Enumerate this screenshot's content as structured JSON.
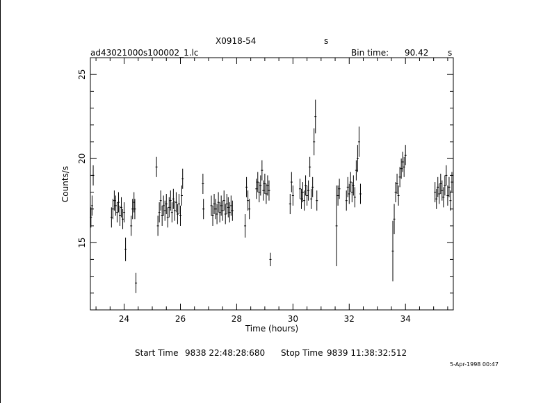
{
  "header": {
    "source": "X0918-54",
    "source_units": "s",
    "filename": "ad43021000s100002_1.lc",
    "bin_time_label": "Bin time:",
    "bin_time_value": "90.42",
    "bin_time_units": "s"
  },
  "footer": {
    "start_label": "Start Time",
    "start_value": "9838 22:48:28:680",
    "stop_label": "Stop Time",
    "stop_value": "9839 11:38:32:512",
    "date_stamp": "5-Apr-1998 00:47"
  },
  "chart_data": {
    "type": "scatter",
    "title": "X0918-54",
    "xlabel": "Time (hours)",
    "ylabel": "Counts/s",
    "xlim": [
      22.8,
      35.7
    ],
    "ylim": [
      11.0,
      26.0
    ],
    "x_ticks": [
      24,
      26,
      28,
      30,
      32,
      34
    ],
    "y_ticks": [
      15,
      20,
      25
    ],
    "error_bars": true,
    "series": [
      {
        "points": [
          [
            22.82,
            16.5,
            0.6
          ],
          [
            22.86,
            17.2,
            0.6
          ],
          [
            22.9,
            19.0,
            0.6
          ],
          [
            23.55,
            16.5,
            0.6
          ],
          [
            23.6,
            17.0,
            0.6
          ],
          [
            23.65,
            17.5,
            0.6
          ],
          [
            23.7,
            17.2,
            0.6
          ],
          [
            23.75,
            16.8,
            0.6
          ],
          [
            23.8,
            17.4,
            0.6
          ],
          [
            23.85,
            16.6,
            0.6
          ],
          [
            23.9,
            17.1,
            0.6
          ],
          [
            23.95,
            16.4,
            0.6
          ],
          [
            24.0,
            16.8,
            0.6
          ],
          [
            24.05,
            14.6,
            0.7
          ],
          [
            24.25,
            16.0,
            0.6
          ],
          [
            24.3,
            17.0,
            0.6
          ],
          [
            24.35,
            17.4,
            0.6
          ],
          [
            24.38,
            17.0,
            0.6
          ],
          [
            24.42,
            12.6,
            0.6
          ],
          [
            25.15,
            19.5,
            0.6
          ],
          [
            25.2,
            16.0,
            0.6
          ],
          [
            25.25,
            16.8,
            0.6
          ],
          [
            25.3,
            17.5,
            0.6
          ],
          [
            25.35,
            16.6,
            0.6
          ],
          [
            25.4,
            17.2,
            0.6
          ],
          [
            25.45,
            16.9,
            0.6
          ],
          [
            25.5,
            17.3,
            0.6
          ],
          [
            25.55,
            16.5,
            0.6
          ],
          [
            25.6,
            17.1,
            0.6
          ],
          [
            25.65,
            17.5,
            0.6
          ],
          [
            25.7,
            16.8,
            0.6
          ],
          [
            25.75,
            17.6,
            0.6
          ],
          [
            25.8,
            16.9,
            0.6
          ],
          [
            25.85,
            17.4,
            0.6
          ],
          [
            25.9,
            16.7,
            0.6
          ],
          [
            25.95,
            17.3,
            0.6
          ],
          [
            26.0,
            16.6,
            0.6
          ],
          [
            26.05,
            17.8,
            0.6
          ],
          [
            26.08,
            18.8,
            0.6
          ],
          [
            26.8,
            18.5,
            0.6
          ],
          [
            26.82,
            17.0,
            0.6
          ],
          [
            27.1,
            17.2,
            0.6
          ],
          [
            27.15,
            16.6,
            0.6
          ],
          [
            27.2,
            17.3,
            0.6
          ],
          [
            27.25,
            17.0,
            0.6
          ],
          [
            27.3,
            16.7,
            0.6
          ],
          [
            27.35,
            17.4,
            0.6
          ],
          [
            27.4,
            16.8,
            0.6
          ],
          [
            27.45,
            17.2,
            0.6
          ],
          [
            27.5,
            16.9,
            0.6
          ],
          [
            27.55,
            17.5,
            0.6
          ],
          [
            27.6,
            16.7,
            0.6
          ],
          [
            27.65,
            17.3,
            0.6
          ],
          [
            27.7,
            17.1,
            0.6
          ],
          [
            27.75,
            16.8,
            0.6
          ],
          [
            27.8,
            17.2,
            0.6
          ],
          [
            27.85,
            16.9,
            0.6
          ],
          [
            28.3,
            16.0,
            0.7
          ],
          [
            28.35,
            18.3,
            0.6
          ],
          [
            28.4,
            17.5,
            0.6
          ],
          [
            28.45,
            17.0,
            0.6
          ],
          [
            28.7,
            18.2,
            0.6
          ],
          [
            28.75,
            18.6,
            0.6
          ],
          [
            28.8,
            18.0,
            0.6
          ],
          [
            28.85,
            18.4,
            0.6
          ],
          [
            28.9,
            19.3,
            0.6
          ],
          [
            28.95,
            18.1,
            0.6
          ],
          [
            29.0,
            18.5,
            0.6
          ],
          [
            29.05,
            17.9,
            0.6
          ],
          [
            29.1,
            18.4,
            0.6
          ],
          [
            29.15,
            18.1,
            0.6
          ],
          [
            29.2,
            14.0,
            0.4
          ],
          [
            29.9,
            17.3,
            0.6
          ],
          [
            29.95,
            18.6,
            0.6
          ],
          [
            30.0,
            17.8,
            0.6
          ],
          [
            30.25,
            18.2,
            0.6
          ],
          [
            30.3,
            17.6,
            0.6
          ],
          [
            30.35,
            18.0,
            0.6
          ],
          [
            30.4,
            17.5,
            0.6
          ],
          [
            30.45,
            18.4,
            0.6
          ],
          [
            30.5,
            17.8,
            0.6
          ],
          [
            30.55,
            18.1,
            0.6
          ],
          [
            30.6,
            19.5,
            0.6
          ],
          [
            30.65,
            17.6,
            0.6
          ],
          [
            30.7,
            18.3,
            0.6
          ],
          [
            30.75,
            21.0,
            0.8
          ],
          [
            30.8,
            22.5,
            1.0
          ],
          [
            30.85,
            17.5,
            0.6
          ],
          [
            31.55,
            16.0,
            2.4
          ],
          [
            31.6,
            17.8,
            0.6
          ],
          [
            31.65,
            18.2,
            0.6
          ],
          [
            31.9,
            17.5,
            0.6
          ],
          [
            31.95,
            18.3,
            0.6
          ],
          [
            32.0,
            17.9,
            0.6
          ],
          [
            32.05,
            18.6,
            0.6
          ],
          [
            32.1,
            18.0,
            0.6
          ],
          [
            32.15,
            18.4,
            0.6
          ],
          [
            32.2,
            17.7,
            0.6
          ],
          [
            32.25,
            19.3,
            0.6
          ],
          [
            32.3,
            20.0,
            0.8
          ],
          [
            32.35,
            21.0,
            0.9
          ],
          [
            32.4,
            17.9,
            0.6
          ],
          [
            33.55,
            14.5,
            1.8
          ],
          [
            33.6,
            16.4,
            0.9
          ],
          [
            33.65,
            18.0,
            0.6
          ],
          [
            33.7,
            18.5,
            0.6
          ],
          [
            33.75,
            17.8,
            0.6
          ],
          [
            33.8,
            18.9,
            0.6
          ],
          [
            33.85,
            19.4,
            0.6
          ],
          [
            33.9,
            19.8,
            0.6
          ],
          [
            33.95,
            19.5,
            0.6
          ],
          [
            34.0,
            20.2,
            0.6
          ],
          [
            35.05,
            18.0,
            0.6
          ],
          [
            35.1,
            17.6,
            0.6
          ],
          [
            35.15,
            18.3,
            0.6
          ],
          [
            35.2,
            17.9,
            0.6
          ],
          [
            35.25,
            18.5,
            0.6
          ],
          [
            35.3,
            18.1,
            0.6
          ],
          [
            35.35,
            17.7,
            0.6
          ],
          [
            35.4,
            18.4,
            0.6
          ],
          [
            35.45,
            19.0,
            0.6
          ],
          [
            35.5,
            17.8,
            0.6
          ],
          [
            35.55,
            18.3,
            0.6
          ],
          [
            35.6,
            17.5,
            0.6
          ],
          [
            35.65,
            18.6,
            0.6
          ]
        ]
      }
    ]
  }
}
